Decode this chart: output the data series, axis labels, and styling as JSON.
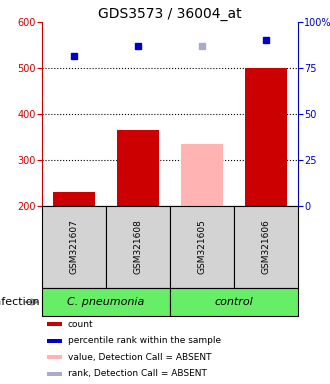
{
  "title": "GDS3573 / 36004_at",
  "samples": [
    "GSM321607",
    "GSM321608",
    "GSM321605",
    "GSM321606"
  ],
  "bar_values": [
    230,
    365,
    335,
    500
  ],
  "bar_colors": [
    "#cc0000",
    "#cc0000",
    "#ffb3b3",
    "#cc0000"
  ],
  "percentile_values": [
    527,
    548,
    547,
    560
  ],
  "percentile_colors": [
    "#0000cc",
    "#0000cc",
    "#aaaacc",
    "#0000cc"
  ],
  "ylim_left": [
    200,
    600
  ],
  "yticks_left": [
    200,
    300,
    400,
    500,
    600
  ],
  "yticks_right": [
    0,
    25,
    50,
    75,
    100
  ],
  "ytick_labels_right": [
    "0",
    "25",
    "50",
    "75",
    "100%"
  ],
  "group_labels": [
    "C. pneumonia",
    "control"
  ],
  "group_color": "#66ee66",
  "group_row_label": "infection",
  "legend_colors": [
    "#cc0000",
    "#0000cc",
    "#ffb3b3",
    "#aaaacc"
  ],
  "legend_labels": [
    "count",
    "percentile rank within the sample",
    "value, Detection Call = ABSENT",
    "rank, Detection Call = ABSENT"
  ],
  "left_axis_color": "#cc0000",
  "right_axis_color": "#0000bb",
  "title_fontsize": 10,
  "tick_fontsize": 7,
  "sample_fontsize": 6.5,
  "group_fontsize": 8,
  "legend_fontsize": 6.5
}
